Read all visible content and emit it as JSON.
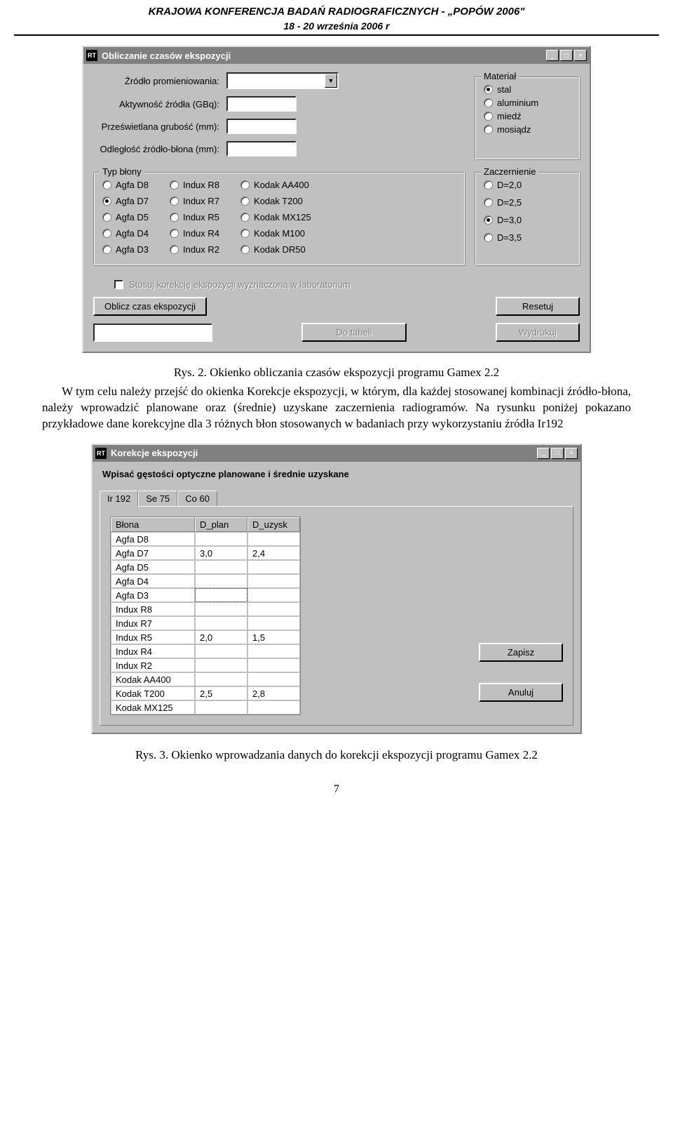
{
  "header": {
    "line1": "KRAJOWA KONFERENCJA BADAŃ RADIOGRAFICZNYCH  -  „POPÓW 2006\"",
    "line2": "18 - 20 września 2006 r"
  },
  "win1": {
    "title": "Obliczanie czasów ekspozycji",
    "app_icon": "RT",
    "labels": {
      "source": "Źródło promieniowania:",
      "activity": "Aktywność źródła (GBq):",
      "thickness": "Prześwietlana grubość (mm):",
      "distance": "Odległość źródło-błona (mm):"
    },
    "material": {
      "legend": "Materiał",
      "options": [
        "stal",
        "aluminium",
        "miedź",
        "mosiądz"
      ],
      "selected": 0
    },
    "film": {
      "legend": "Typ błony",
      "col1": [
        "Agfa D8",
        "Agfa D7",
        "Agfa D5",
        "Agfa D4",
        "Agfa D3"
      ],
      "col2": [
        "Indux R8",
        "Indux R7",
        "Indux R5",
        "Indux R4",
        "Indux R2"
      ],
      "col3": [
        "Kodak AA400",
        "Kodak T200",
        "Kodak MX125",
        "Kodak M100",
        "Kodak DR50"
      ],
      "selected_col": 0,
      "selected_idx": 1
    },
    "density": {
      "legend": "Zaczernienie",
      "options": [
        "D=2,0",
        "D=2,5",
        "D=3,0",
        "D=3,5"
      ],
      "selected": 2
    },
    "checkbox_label": "Stosuj korekcję ekspozycji wyznaczoną w laboratorium",
    "buttons": {
      "calc": "Oblicz czas ekspozycji",
      "reset": "Resetuj",
      "totable": "Do tabeli",
      "print": "Wydrukuj"
    }
  },
  "caption1": "Rys. 2. Okienko obliczania czasów ekspozycji programu Gamex 2.2",
  "para1": "W tym celu należy przejść do okienka Korekcje ekspozycji, w którym, dla każdej stosowanej kombinacji źródło-błona, należy wprowadzić planowane oraz (średnie) uzyskane zaczernienia radiogramów. Na rysunku poniżej pokazano przykładowe dane korekcyjne dla 3 różnych błon stosowanych w badaniach przy wykorzystaniu źródła Ir192",
  "win2": {
    "title": "Korekcje ekspozycji",
    "app_icon": "RT",
    "instruction": "Wpisać gęstości optyczne planowane i średnie uzyskane",
    "tabs": [
      "Ir 192",
      "Se 75",
      "Co 60"
    ],
    "active_tab": 0,
    "table": {
      "headers": [
        "Błona",
        "D_plan",
        "D_uzysk"
      ],
      "rows": [
        {
          "film": "Agfa D8",
          "dp": "",
          "du": ""
        },
        {
          "film": "Agfa D7",
          "dp": "3,0",
          "du": "2,4"
        },
        {
          "film": "Agfa D5",
          "dp": "",
          "du": ""
        },
        {
          "film": "Agfa D4",
          "dp": "",
          "du": ""
        },
        {
          "film": "Agfa D3",
          "dp": "",
          "du": "",
          "sel": true
        },
        {
          "film": "Indux R8",
          "dp": "",
          "du": ""
        },
        {
          "film": "Indux R7",
          "dp": "",
          "du": ""
        },
        {
          "film": "Indux R5",
          "dp": "2,0",
          "du": "1,5"
        },
        {
          "film": "Indux R4",
          "dp": "",
          "du": ""
        },
        {
          "film": "Indux R2",
          "dp": "",
          "du": ""
        },
        {
          "film": "Kodak AA400",
          "dp": "",
          "du": ""
        },
        {
          "film": "Kodak T200",
          "dp": "2,5",
          "du": "2,8"
        },
        {
          "film": "Kodak MX125",
          "dp": "",
          "du": ""
        }
      ]
    },
    "buttons": {
      "save": "Zapisz",
      "cancel": "Anuluj"
    }
  },
  "caption2": "Rys. 3. Okienko wprowadzania danych do korekcji ekspozycji programu Gamex 2.2",
  "page_num": "7"
}
